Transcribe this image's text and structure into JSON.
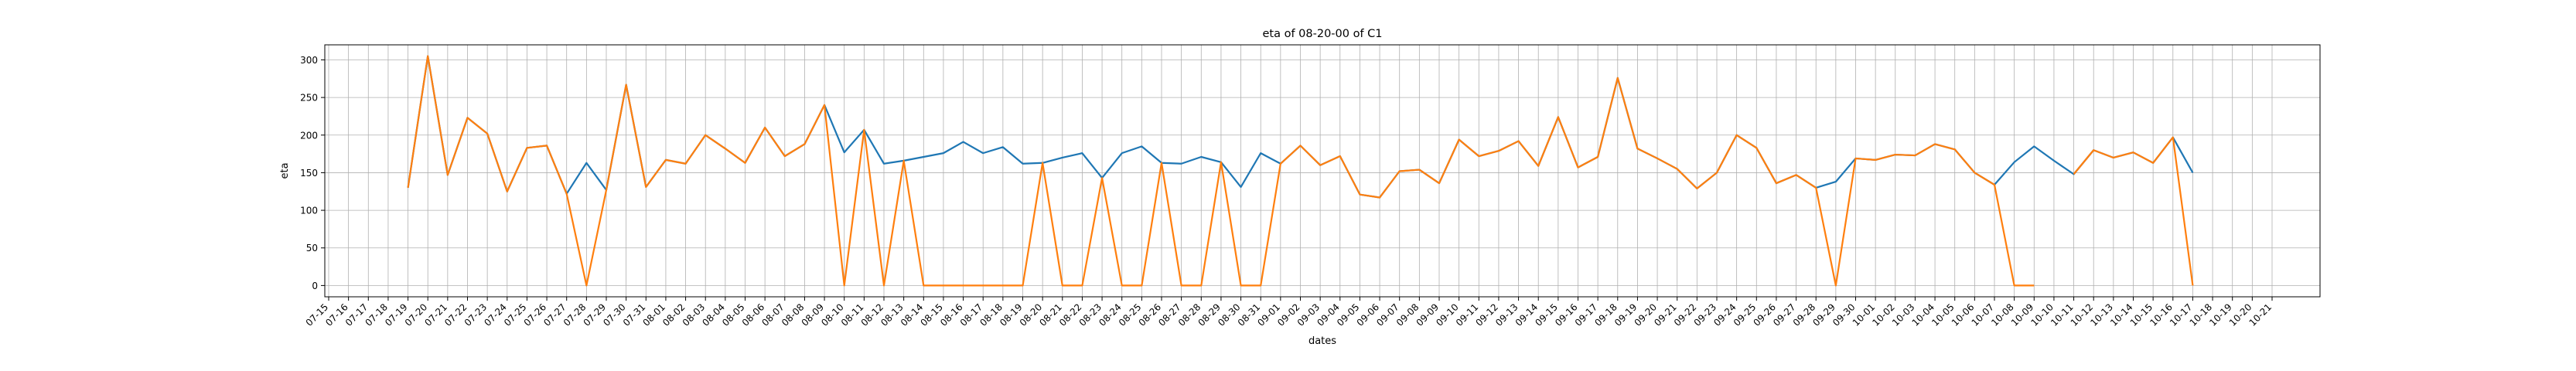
{
  "chart_data": {
    "type": "line",
    "title": "eta of 08-20-00 of C1",
    "xlabel": "dates",
    "ylabel": "eta",
    "ylim": [
      -15,
      320
    ],
    "yticks": [
      0,
      50,
      100,
      150,
      200,
      250,
      300
    ],
    "grid": true,
    "categories": [
      "07-15",
      "07-16",
      "07-17",
      "07-18",
      "07-19",
      "07-20",
      "07-21",
      "07-22",
      "07-23",
      "07-24",
      "07-25",
      "07-26",
      "07-27",
      "07-28",
      "07-29",
      "07-30",
      "07-31",
      "08-01",
      "08-02",
      "08-03",
      "08-04",
      "08-05",
      "08-06",
      "08-07",
      "08-08",
      "08-09",
      "08-10",
      "08-11",
      "08-12",
      "08-13",
      "08-14",
      "08-15",
      "08-16",
      "08-17",
      "08-18",
      "08-19",
      "08-20",
      "08-21",
      "08-22",
      "08-23",
      "08-24",
      "08-25",
      "08-26",
      "08-27",
      "08-28",
      "08-29",
      "08-30",
      "08-31",
      "09-01",
      "09-02",
      "09-03",
      "09-04",
      "09-05",
      "09-06",
      "09-07",
      "09-08",
      "09-09",
      "09-10",
      "09-11",
      "09-12",
      "09-13",
      "09-14",
      "09-15",
      "09-16",
      "09-17",
      "09-18",
      "09-19",
      "09-20",
      "09-21",
      "09-22",
      "09-23",
      "09-24",
      "09-25",
      "09-26",
      "09-27",
      "09-28",
      "09-29",
      "09-30",
      "10-01",
      "10-02",
      "10-03",
      "10-04",
      "10-05",
      "10-06",
      "10-07",
      "10-08",
      "10-09",
      "10-10",
      "10-11",
      "10-12",
      "10-13",
      "10-14",
      "10-15",
      "10-16",
      "10-17",
      "10-18",
      "10-19",
      "10-20",
      "10-21"
    ],
    "series": [
      {
        "color": "#1f77b4",
        "values": [
          null,
          null,
          null,
          null,
          130,
          305,
          147,
          223,
          202,
          125,
          183,
          186,
          122,
          163,
          127,
          267,
          131,
          167,
          162,
          200,
          182,
          163,
          210,
          172,
          188,
          240,
          177,
          207,
          162,
          166,
          171,
          176,
          191,
          176,
          184,
          162,
          163,
          170,
          176,
          143,
          176,
          185,
          163,
          162,
          171,
          164,
          131,
          176,
          162,
          186,
          160,
          172,
          121,
          117,
          152,
          154,
          136,
          194,
          172,
          179,
          192,
          159,
          224,
          157,
          171,
          276,
          182,
          169,
          155,
          129,
          150,
          200,
          183,
          136,
          147,
          130,
          138,
          169,
          167,
          174,
          173,
          188,
          181,
          150,
          134,
          164,
          185,
          166,
          148,
          180,
          170,
          177,
          163,
          197,
          150,
          null,
          null,
          null,
          null
        ]
      },
      {
        "color": "#ff7f0e",
        "values": [
          null,
          null,
          null,
          null,
          130,
          305,
          147,
          223,
          202,
          125,
          183,
          186,
          122,
          0,
          127,
          267,
          131,
          167,
          162,
          200,
          182,
          163,
          210,
          172,
          188,
          240,
          0,
          207,
          0,
          166,
          0,
          0,
          0,
          0,
          0,
          0,
          163,
          0,
          0,
          143,
          0,
          0,
          163,
          0,
          0,
          164,
          0,
          0,
          162,
          186,
          160,
          172,
          121,
          117,
          152,
          154,
          136,
          194,
          172,
          179,
          192,
          159,
          224,
          157,
          171,
          276,
          182,
          169,
          155,
          129,
          150,
          200,
          183,
          136,
          147,
          130,
          0,
          169,
          167,
          174,
          173,
          188,
          181,
          150,
          134,
          0,
          0,
          null,
          148,
          180,
          170,
          177,
          163,
          197,
          0,
          null,
          null,
          null,
          null
        ]
      }
    ]
  }
}
